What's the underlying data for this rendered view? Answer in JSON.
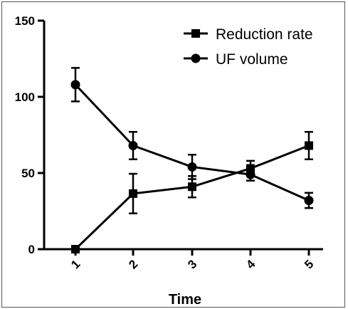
{
  "chart_data": {
    "type": "line",
    "x": [
      1,
      2,
      3,
      4,
      5
    ],
    "xlabel": "Time",
    "ylabel": "",
    "ylim": [
      0,
      150
    ],
    "yticks": [
      0,
      50,
      100,
      150
    ],
    "grid": false,
    "legend_position": "top-right",
    "series": [
      {
        "name": "Reduction rate",
        "marker": "square",
        "values": [
          0,
          36.5,
          41,
          53,
          68
        ],
        "error": [
          0,
          13,
          7,
          5,
          9
        ]
      },
      {
        "name": "UF volume",
        "marker": "circle",
        "values": [
          108,
          68,
          54,
          49,
          32
        ],
        "error": [
          11,
          9,
          8,
          4,
          5
        ]
      }
    ],
    "colors": {
      "line": "#000000",
      "background": "#ffffff"
    }
  }
}
